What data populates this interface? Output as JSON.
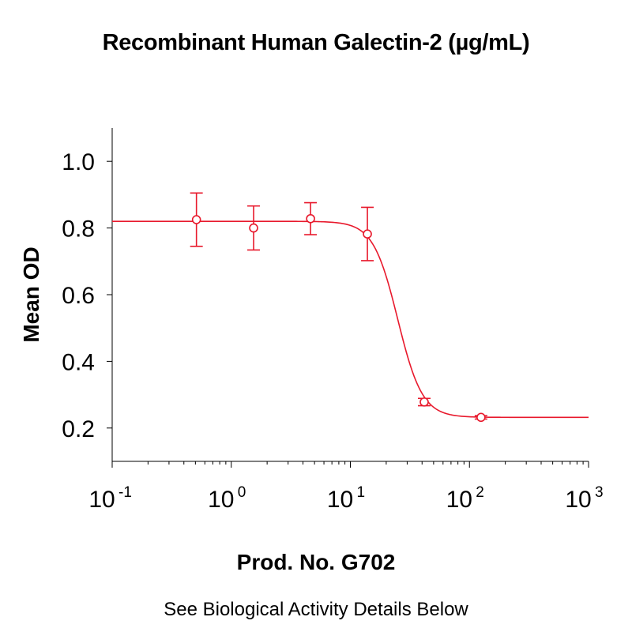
{
  "chart_data": {
    "type": "scatter",
    "title": "Recombinant Human Galectin-2 (µg/mL)",
    "xlabel": "Prod. No. G702",
    "ylabel": "Mean OD",
    "note": "See Biological Activity Details Below",
    "xscale": "log",
    "xlim": [
      0.1,
      1000
    ],
    "ylim": [
      0.1,
      1.1
    ],
    "x_ticks": [
      {
        "base": "10",
        "exp": "-1",
        "value": 0.1
      },
      {
        "base": "10",
        "exp": "0",
        "value": 1
      },
      {
        "base": "10",
        "exp": "1",
        "value": 10
      },
      {
        "base": "10",
        "exp": "2",
        "value": 100
      },
      {
        "base": "10",
        "exp": "3",
        "value": 1000
      }
    ],
    "y_ticks": [
      {
        "label": "0.2",
        "value": 0.2
      },
      {
        "label": "0.4",
        "value": 0.4
      },
      {
        "label": "0.6",
        "value": 0.6
      },
      {
        "label": "0.8",
        "value": 0.8
      },
      {
        "label": "1.0",
        "value": 1.0
      }
    ],
    "grid": false,
    "color": "#e8192c",
    "series": [
      {
        "x": [
          0.51,
          1.54,
          4.63,
          13.9,
          41.7,
          125
        ],
        "y": [
          0.825,
          0.8,
          0.828,
          0.782,
          0.278,
          0.232
        ],
        "err": [
          0.08,
          0.066,
          0.048,
          0.08,
          0.011,
          0.005
        ]
      }
    ],
    "fit": {
      "model": "4PL",
      "top": 0.82,
      "bottom": 0.232,
      "ec50": 25,
      "hill": 4.2
    }
  }
}
